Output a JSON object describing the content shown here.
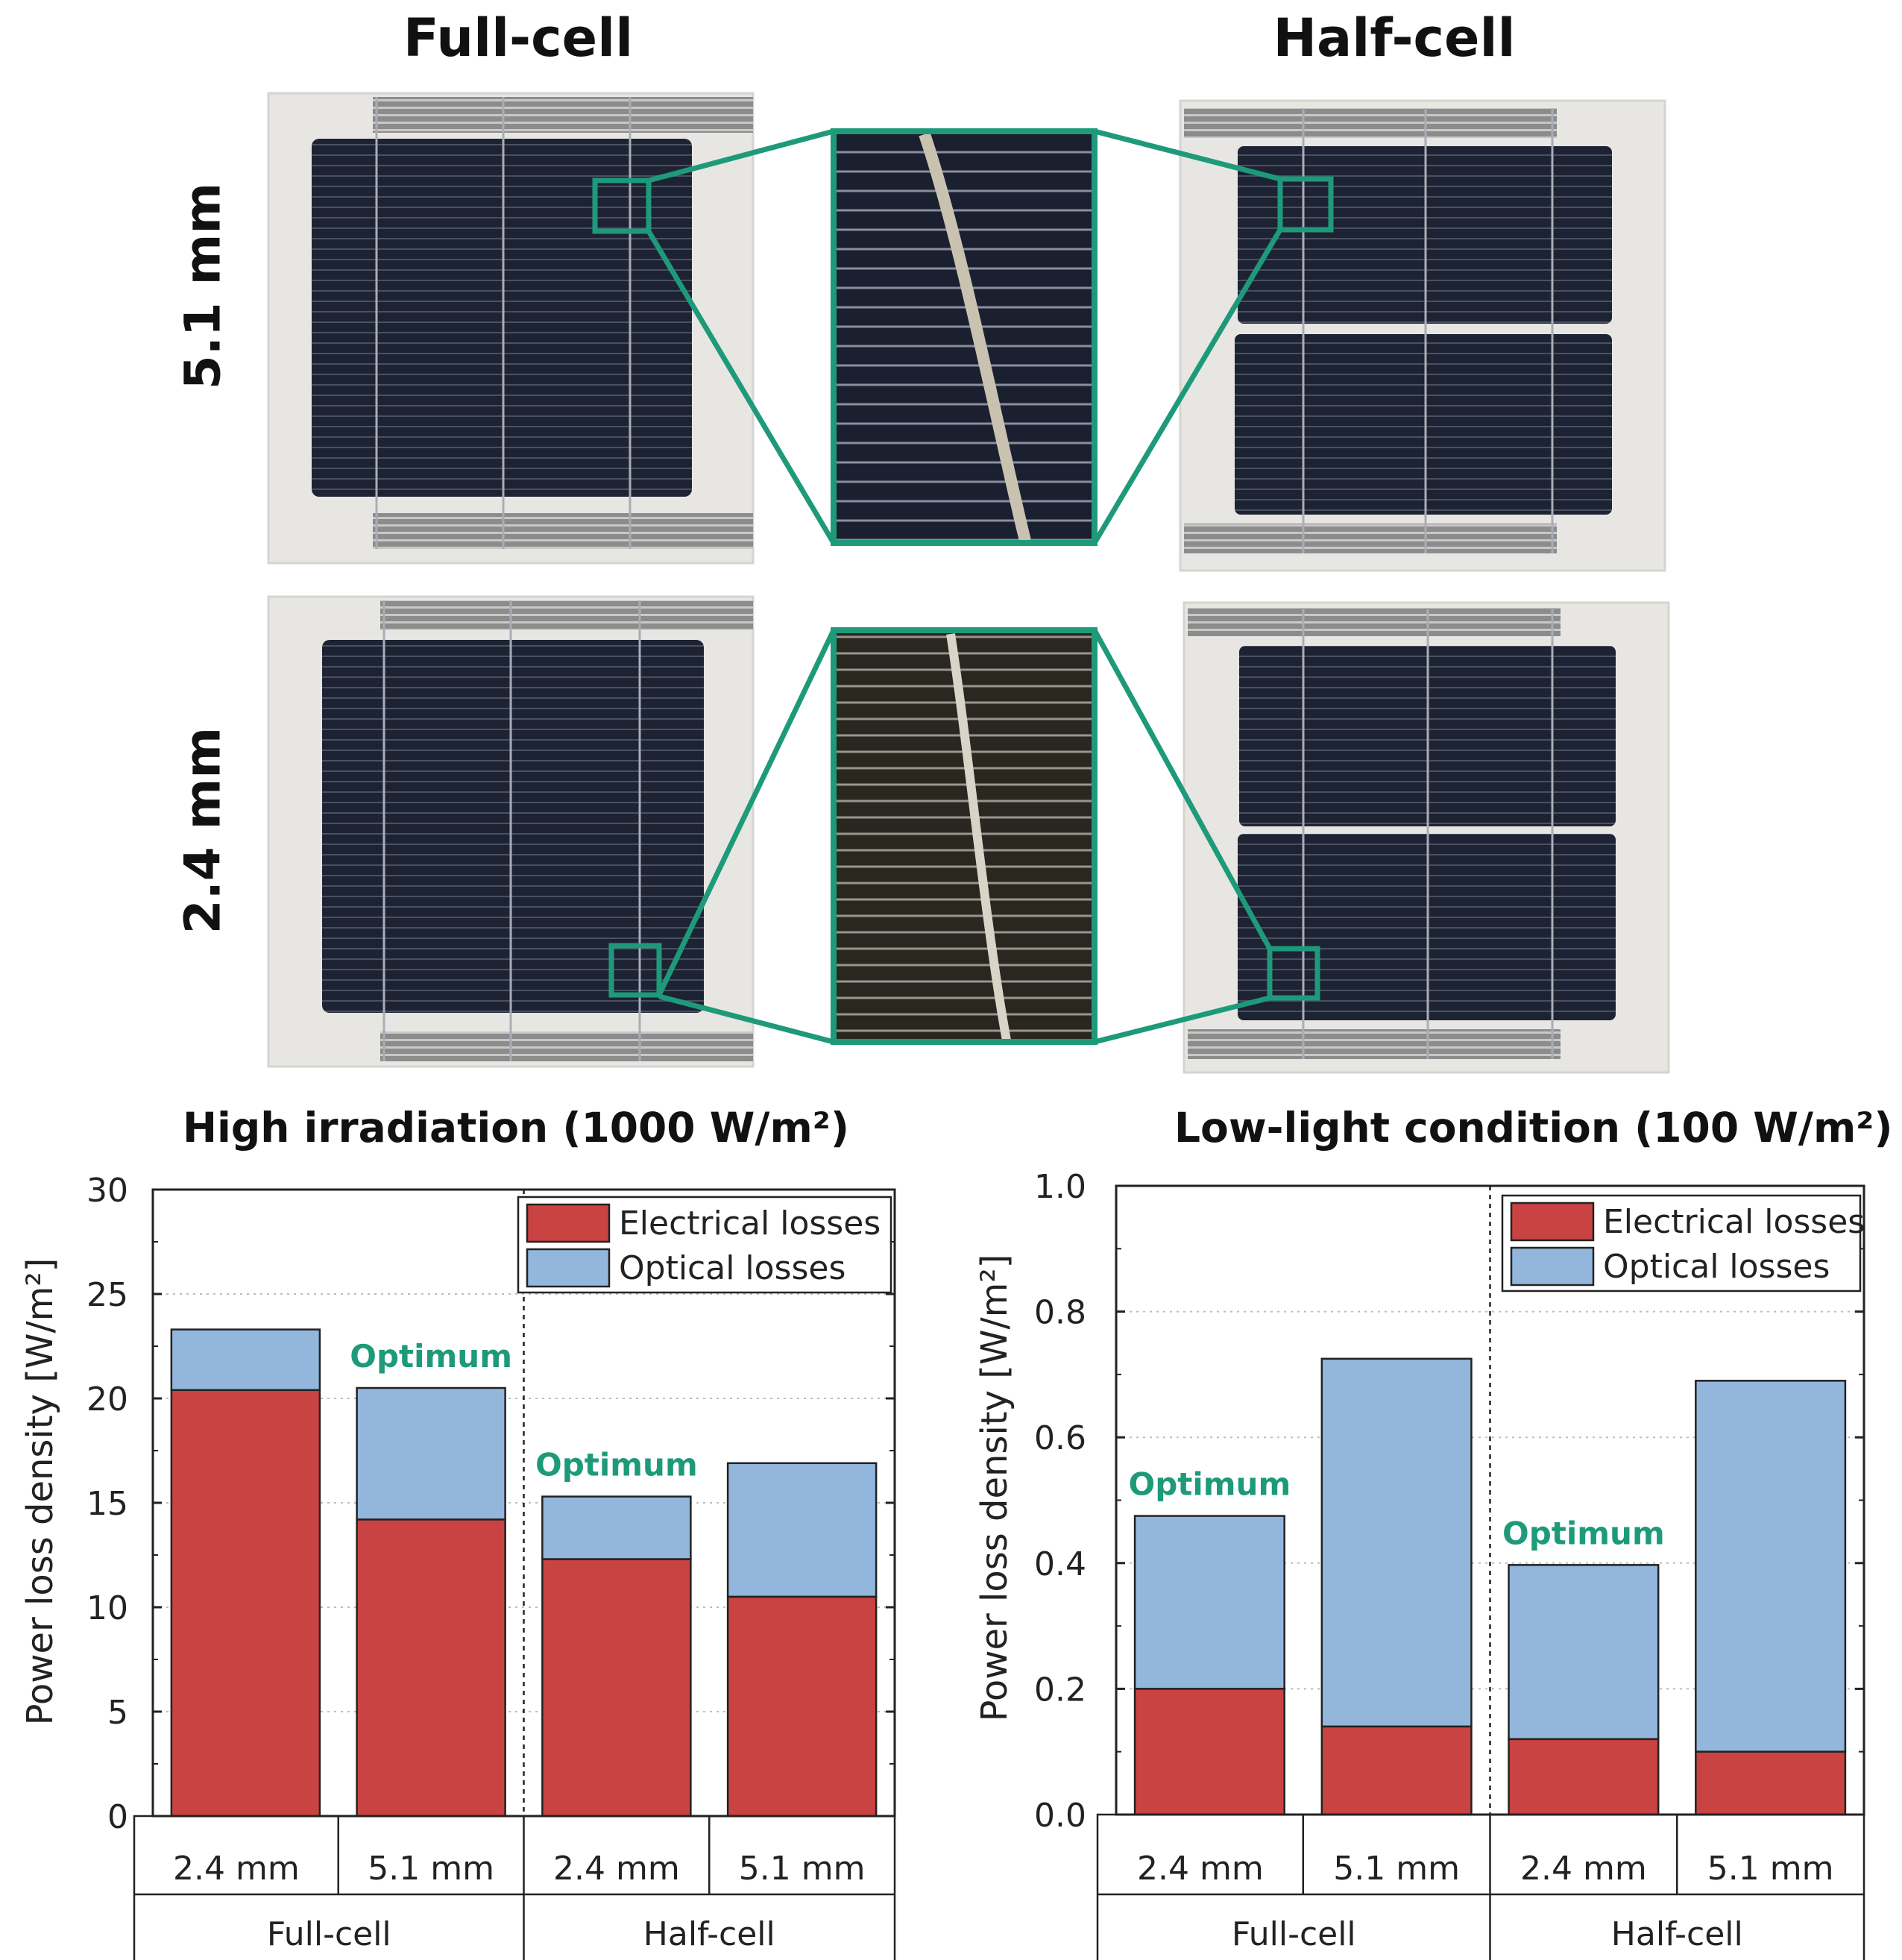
{
  "columns": {
    "full": "Full-cell",
    "half": "Half-cell"
  },
  "rows": {
    "top": "5.1 mm",
    "bottom": "2.4 mm"
  },
  "colors": {
    "electrical": "#c94342",
    "optical": "#93b7dc",
    "highlight": "#1e9a7a",
    "cell": "#1d2333"
  },
  "chart_data": [
    {
      "type": "bar",
      "stacked": true,
      "title": "High irradiation (1000 W/m²)",
      "ylabel": "Power loss density [W/m²]",
      "ylim": [
        0,
        30
      ],
      "yticks": [
        "0",
        "5",
        "10",
        "15",
        "20",
        "25",
        "30"
      ],
      "categories": [
        "2.4 mm",
        "5.1 mm",
        "2.4 mm",
        "5.1 mm"
      ],
      "groups": [
        "Full-cell",
        "Half-cell"
      ],
      "series": [
        {
          "name": "Electrical losses",
          "values": [
            20.4,
            14.2,
            12.3,
            10.5
          ]
        },
        {
          "name": "Optical losses",
          "values": [
            2.9,
            6.3,
            3.0,
            6.4
          ]
        }
      ],
      "annotations": [
        {
          "text": "Optimum",
          "bar": 1
        },
        {
          "text": "Optimum",
          "bar": 2
        }
      ]
    },
    {
      "type": "bar",
      "stacked": true,
      "title": "Low-light condition (100 W/m²)",
      "ylabel": "Power loss density [W/m²]",
      "ylim": [
        0,
        1.0
      ],
      "yticks": [
        "0.0",
        "0.2",
        "0.4",
        "0.6",
        "0.8",
        "1.0"
      ],
      "categories": [
        "2.4 mm",
        "5.1 mm",
        "2.4 mm",
        "5.1 mm"
      ],
      "groups": [
        "Full-cell",
        "Half-cell"
      ],
      "series": [
        {
          "name": "Electrical losses",
          "values": [
            0.2,
            0.14,
            0.12,
            0.1
          ]
        },
        {
          "name": "Optical losses",
          "values": [
            0.275,
            0.585,
            0.277,
            0.59
          ]
        }
      ],
      "annotations": [
        {
          "text": "Optimum",
          "bar": 0
        },
        {
          "text": "Optimum",
          "bar": 2
        }
      ]
    }
  ]
}
